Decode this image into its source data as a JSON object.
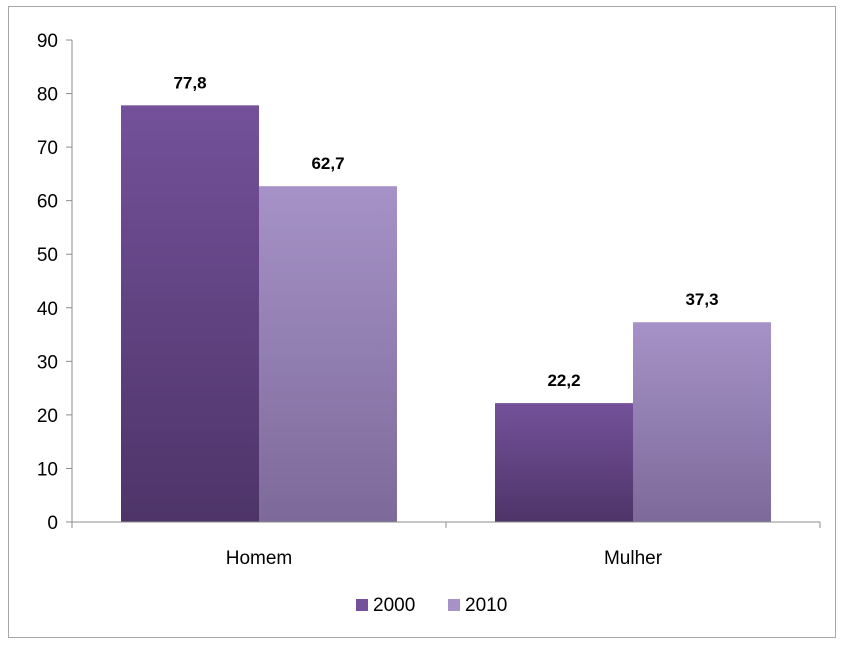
{
  "chart_data": {
    "type": "bar",
    "categories": [
      "Homem",
      "Mulher"
    ],
    "series": [
      {
        "name": "2000",
        "values": [
          77.8,
          22.2
        ],
        "labels": [
          "77,8",
          "22,2"
        ],
        "color_top": "#74519a",
        "color_bottom": "#4d3468"
      },
      {
        "name": "2010",
        "values": [
          62.7,
          37.3
        ],
        "labels": [
          "62,7",
          "37,3"
        ],
        "color_top": "#a692c6",
        "color_bottom": "#7d6a9a"
      }
    ],
    "ylim": [
      0,
      90
    ],
    "yticks": [
      0,
      10,
      20,
      30,
      40,
      50,
      60,
      70,
      80,
      90
    ],
    "grid": false,
    "legend_position": "bottom",
    "title": "",
    "xlabel": "",
    "ylabel": ""
  }
}
